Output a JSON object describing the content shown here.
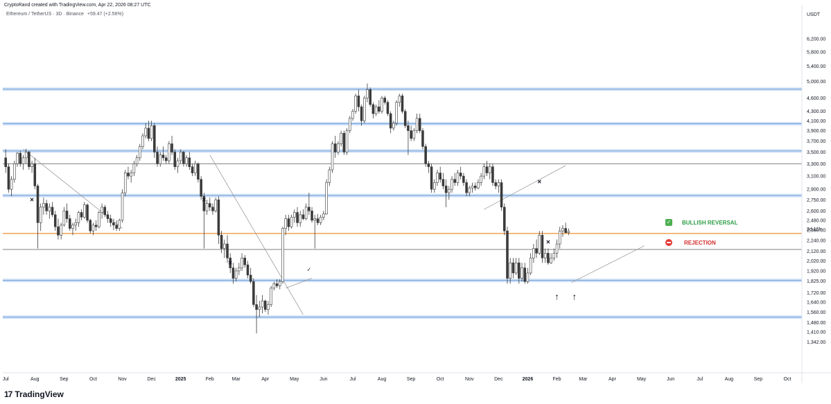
{
  "header": {
    "attribution": "CryptoRand created with TradingView.com, Apr 22, 2026 08:27 UTC",
    "symbol_line": "Ethereum / TetherUS · 3D · Binance",
    "change": "+59.47 (+2.56%)"
  },
  "branding": {
    "logo_glyph": "17",
    "name": "TradingView"
  },
  "annotations": {
    "bullish": {
      "label": "BULLISH REVERSAL",
      "icon_glyph": "✓",
      "color": "#2e9e46"
    },
    "rejection": {
      "label": "REJECTION",
      "color": "#d32f2f"
    },
    "countdown": "2d 16h"
  },
  "colors": {
    "up_body": "#ffffff",
    "down_body": "#3a3a3a",
    "candle_outline": "#3a3a3a",
    "support_band": "#aac8ef",
    "support_line": "#6f9fd8",
    "orange_line": "#f0a050",
    "grey_line": "#555555",
    "trend_line": "#9a9a9a"
  },
  "chart_data": {
    "type": "candlestick",
    "title": "",
    "quote_currency": "USDT",
    "scale": "log",
    "ylim": [
      1270,
      6700
    ],
    "price_ticks": [
      "6,200.00",
      "5,800.00",
      "5,400.00",
      "5,000.00",
      "4,600.00",
      "4,300.00",
      "4,100.00",
      "3,900.00",
      "3,700.00",
      "3,500.00",
      "3,300.00",
      "3,100.00",
      "2,900.00",
      "2,750.00",
      "2,600.00",
      "2,480.00",
      "2,360.00",
      "2,240.00",
      "2,120.00",
      "2,020.00",
      "1,920.00",
      "1,825.00",
      "1,720.00",
      "1,640.00",
      "1,560.00",
      "1,480.00",
      "1,410.00",
      "1,342.00"
    ],
    "x_ticks": [
      {
        "label": "Jul",
        "index": 0,
        "bold": false
      },
      {
        "label": "Aug",
        "index": 10,
        "bold": false
      },
      {
        "label": "Sep",
        "index": 20,
        "bold": false
      },
      {
        "label": "Oct",
        "index": 30,
        "bold": false
      },
      {
        "label": "Nov",
        "index": 40,
        "bold": false
      },
      {
        "label": "Dec",
        "index": 50,
        "bold": false
      },
      {
        "label": "2025",
        "index": 60,
        "bold": true
      },
      {
        "label": "Feb",
        "index": 70,
        "bold": false
      },
      {
        "label": "Mar",
        "index": 79,
        "bold": false
      },
      {
        "label": "Apr",
        "index": 89,
        "bold": false
      },
      {
        "label": "May",
        "index": 99,
        "bold": false
      },
      {
        "label": "Jun",
        "index": 109,
        "bold": false
      },
      {
        "label": "Jul",
        "index": 119,
        "bold": false
      },
      {
        "label": "Aug",
        "index": 129,
        "bold": false
      },
      {
        "label": "Sep",
        "index": 139,
        "bold": false
      },
      {
        "label": "Oct",
        "index": 149,
        "bold": false
      },
      {
        "label": "Nov",
        "index": 159,
        "bold": false
      },
      {
        "label": "Dec",
        "index": 169,
        "bold": false
      },
      {
        "label": "2026",
        "index": 179,
        "bold": true
      },
      {
        "label": "Feb",
        "index": 189,
        "bold": false
      },
      {
        "label": "Mar",
        "index": 198,
        "bold": false
      },
      {
        "label": "Apr",
        "index": 208,
        "bold": false
      },
      {
        "label": "May",
        "index": 218,
        "bold": false
      },
      {
        "label": "Jun",
        "index": 228,
        "bold": false
      },
      {
        "label": "Jul",
        "index": 238,
        "bold": false
      },
      {
        "label": "Aug",
        "index": 248,
        "bold": false
      },
      {
        "label": "Sep",
        "index": 258,
        "bold": false
      },
      {
        "label": "Oct",
        "index": 268,
        "bold": false
      }
    ],
    "x_domain": [
      -1,
      273
    ],
    "horizontal_levels": [
      {
        "price": 4810,
        "kind": "support"
      },
      {
        "price": 4040,
        "kind": "support"
      },
      {
        "price": 3520,
        "kind": "support"
      },
      {
        "price": 2810,
        "kind": "support"
      },
      {
        "price": 1830,
        "kind": "support"
      },
      {
        "price": 1520,
        "kind": "support"
      },
      {
        "price": 3300,
        "kind": "grey"
      },
      {
        "price": 2140,
        "kind": "grey"
      },
      {
        "price": 2320,
        "kind": "orange"
      }
    ],
    "trend_lines": [
      {
        "from": [
          6,
          3550
        ],
        "to": [
          40,
          2380
        ]
      },
      {
        "from": [
          70,
          3450
        ],
        "to": [
          102,
          1540
        ]
      },
      {
        "from": [
          96,
          1760
        ],
        "to": [
          105,
          1850
        ]
      },
      {
        "from": [
          164,
          2620
        ],
        "to": [
          192,
          3270
        ]
      },
      {
        "from": [
          194,
          1810
        ],
        "to": [
          219,
          2180
        ]
      }
    ],
    "markers": [
      {
        "type": "x",
        "index": 9,
        "price": 2750
      },
      {
        "type": "x",
        "index": 68,
        "price": 2750
      },
      {
        "type": "x",
        "index": 77,
        "price": 2000
      },
      {
        "type": "x",
        "index": 183,
        "price": 3010
      },
      {
        "type": "x",
        "index": 186,
        "price": 2220
      },
      {
        "type": "check",
        "index": 104,
        "price": 1935
      },
      {
        "type": "arrow-up",
        "index": 189,
        "price": 1690
      },
      {
        "type": "arrow-up",
        "index": 195,
        "price": 1690
      }
    ],
    "candles": [
      [
        3400,
        3550,
        3150,
        3250
      ],
      [
        3250,
        3300,
        2850,
        2900
      ],
      [
        2900,
        3100,
        2800,
        3050
      ],
      [
        3050,
        3350,
        3000,
        3300
      ],
      [
        3300,
        3500,
        3250,
        3480
      ],
      [
        3480,
        3520,
        3250,
        3300
      ],
      [
        3300,
        3450,
        3200,
        3400
      ],
      [
        3400,
        3560,
        3300,
        3500
      ],
      [
        3500,
        3520,
        3200,
        3250
      ],
      [
        3250,
        3350,
        3150,
        3300
      ],
      [
        3300,
        3400,
        2900,
        2950
      ],
      [
        2950,
        2980,
        2150,
        2450
      ],
      [
        2450,
        2700,
        2350,
        2650
      ],
      [
        2650,
        2780,
        2550,
        2700
      ],
      [
        2700,
        2750,
        2550,
        2600
      ],
      [
        2600,
        2700,
        2500,
        2650
      ],
      [
        2650,
        2720,
        2520,
        2550
      ],
      [
        2550,
        2600,
        2350,
        2400
      ],
      [
        2400,
        2500,
        2250,
        2300
      ],
      [
        2300,
        2450,
        2250,
        2420
      ],
      [
        2420,
        2650,
        2400,
        2600
      ],
      [
        2600,
        2700,
        2450,
        2500
      ],
      [
        2500,
        2550,
        2350,
        2380
      ],
      [
        2380,
        2450,
        2300,
        2420
      ],
      [
        2420,
        2500,
        2350,
        2450
      ],
      [
        2450,
        2600,
        2400,
        2580
      ],
      [
        2580,
        2620,
        2480,
        2520
      ],
      [
        2520,
        2720,
        2500,
        2680
      ],
      [
        2680,
        2700,
        2450,
        2480
      ],
      [
        2480,
        2500,
        2320,
        2350
      ],
      [
        2350,
        2450,
        2300,
        2420
      ],
      [
        2420,
        2480,
        2350,
        2400
      ],
      [
        2400,
        2600,
        2380,
        2580
      ],
      [
        2580,
        2700,
        2500,
        2650
      ],
      [
        2650,
        2680,
        2520,
        2550
      ],
      [
        2550,
        2600,
        2450,
        2500
      ],
      [
        2500,
        2550,
        2400,
        2450
      ],
      [
        2450,
        2500,
        2360,
        2420
      ],
      [
        2420,
        2480,
        2350,
        2380
      ],
      [
        2380,
        2500,
        2350,
        2480
      ],
      [
        2480,
        2900,
        2450,
        2850
      ],
      [
        2850,
        3200,
        2800,
        3150
      ],
      [
        3150,
        3250,
        3050,
        3100
      ],
      [
        3100,
        3200,
        3000,
        3150
      ],
      [
        3150,
        3350,
        3100,
        3300
      ],
      [
        3300,
        3450,
        3250,
        3400
      ],
      [
        3400,
        3650,
        3350,
        3600
      ],
      [
        3600,
        3850,
        3550,
        3800
      ],
      [
        3800,
        4050,
        3750,
        3950
      ],
      [
        3950,
        4100,
        3700,
        3750
      ],
      [
        3750,
        4100,
        3700,
        4000
      ],
      [
        4000,
        4050,
        3400,
        3500
      ],
      [
        3500,
        3600,
        3250,
        3300
      ],
      [
        3300,
        3500,
        3250,
        3450
      ],
      [
        3450,
        3600,
        3350,
        3400
      ],
      [
        3400,
        3450,
        3300,
        3350
      ],
      [
        3350,
        3700,
        3300,
        3650
      ],
      [
        3650,
        3800,
        3450,
        3500
      ],
      [
        3500,
        3550,
        3200,
        3250
      ],
      [
        3250,
        3400,
        3150,
        3350
      ],
      [
        3350,
        3550,
        3300,
        3500
      ],
      [
        3500,
        3520,
        3250,
        3300
      ],
      [
        3300,
        3450,
        3250,
        3400
      ],
      [
        3400,
        3500,
        3200,
        3250
      ],
      [
        3250,
        3300,
        3100,
        3150
      ],
      [
        3150,
        3350,
        3100,
        3300
      ],
      [
        3300,
        3320,
        3000,
        3050
      ],
      [
        3050,
        3100,
        2750,
        2800
      ],
      [
        2800,
        2850,
        2150,
        2600
      ],
      [
        2600,
        2750,
        2550,
        2700
      ],
      [
        2700,
        2780,
        2600,
        2650
      ],
      [
        2650,
        2700,
        2550,
        2600
      ],
      [
        2600,
        2780,
        2580,
        2750
      ],
      [
        2750,
        2800,
        2200,
        2300
      ],
      [
        2300,
        2350,
        2100,
        2150
      ],
      [
        2150,
        2250,
        2050,
        2200
      ],
      [
        2200,
        2300,
        2000,
        2050
      ],
      [
        2050,
        2100,
        1900,
        1950
      ],
      [
        1950,
        2000,
        1800,
        1850
      ],
      [
        1850,
        1950,
        1820,
        1920
      ],
      [
        1920,
        2000,
        1880,
        1950
      ],
      [
        1950,
        2100,
        1920,
        2050
      ],
      [
        2050,
        2080,
        1950,
        1980
      ],
      [
        1980,
        2020,
        1850,
        1880
      ],
      [
        1880,
        1950,
        1800,
        1820
      ],
      [
        1820,
        1850,
        1600,
        1620
      ],
      [
        1620,
        1700,
        1400,
        1580
      ],
      [
        1580,
        1650,
        1520,
        1600
      ],
      [
        1600,
        1700,
        1550,
        1650
      ],
      [
        1650,
        1660,
        1560,
        1580
      ],
      [
        1580,
        1650,
        1540,
        1620
      ],
      [
        1620,
        1780,
        1600,
        1760
      ],
      [
        1760,
        1820,
        1740,
        1800
      ],
      [
        1800,
        1840,
        1760,
        1780
      ],
      [
        1780,
        1840,
        1750,
        1820
      ],
      [
        1820,
        2400,
        1800,
        2380
      ],
      [
        2380,
        2550,
        2300,
        2500
      ],
      [
        2500,
        2550,
        2350,
        2400
      ],
      [
        2400,
        2550,
        2380,
        2520
      ],
      [
        2520,
        2620,
        2450,
        2580
      ],
      [
        2580,
        2650,
        2400,
        2450
      ],
      [
        2450,
        2600,
        2400,
        2550
      ],
      [
        2550,
        2620,
        2480,
        2500
      ],
      [
        2500,
        2700,
        2480,
        2650
      ],
      [
        2650,
        2850,
        2550,
        2600
      ],
      [
        2600,
        2650,
        2450,
        2480
      ],
      [
        2480,
        2550,
        2150,
        2500
      ],
      [
        2500,
        2560,
        2420,
        2450
      ],
      [
        2450,
        2550,
        2420,
        2520
      ],
      [
        2520,
        2600,
        2480,
        2560
      ],
      [
        2560,
        3050,
        2550,
        3000
      ],
      [
        3000,
        3250,
        2950,
        3200
      ],
      [
        3200,
        3700,
        3150,
        3650
      ],
      [
        3650,
        3800,
        3400,
        3500
      ],
      [
        3500,
        3700,
        3450,
        3650
      ],
      [
        3650,
        3900,
        3600,
        3850
      ],
      [
        3850,
        3900,
        3450,
        3500
      ],
      [
        3500,
        3950,
        3450,
        3900
      ],
      [
        3900,
        4200,
        3850,
        4150
      ],
      [
        4150,
        4350,
        4100,
        4300
      ],
      [
        4300,
        4700,
        4250,
        4650
      ],
      [
        4650,
        4800,
        4300,
        4400
      ],
      [
        4400,
        4450,
        4000,
        4100
      ],
      [
        4100,
        4650,
        4050,
        4600
      ],
      [
        4600,
        4950,
        4500,
        4800
      ],
      [
        4800,
        4850,
        4400,
        4450
      ],
      [
        4450,
        4500,
        4150,
        4250
      ],
      [
        4250,
        4450,
        4200,
        4400
      ],
      [
        4400,
        4550,
        4250,
        4300
      ],
      [
        4300,
        4650,
        4250,
        4600
      ],
      [
        4600,
        4650,
        4450,
        4500
      ],
      [
        4500,
        4550,
        4200,
        4250
      ],
      [
        4250,
        4300,
        3850,
        3950
      ],
      [
        3950,
        4100,
        3900,
        4050
      ],
      [
        4050,
        4550,
        4000,
        4500
      ],
      [
        4500,
        4700,
        4400,
        4650
      ],
      [
        4650,
        4700,
        4250,
        4300
      ],
      [
        4300,
        4350,
        3950,
        4000
      ],
      [
        4000,
        4100,
        3450,
        3900
      ],
      [
        3900,
        4000,
        3700,
        3750
      ],
      [
        3750,
        3950,
        3700,
        3900
      ],
      [
        3900,
        4250,
        3850,
        4150
      ],
      [
        4150,
        4250,
        3850,
        3900
      ],
      [
        3900,
        3950,
        3550,
        3600
      ],
      [
        3600,
        3650,
        3250,
        3300
      ],
      [
        3300,
        3350,
        3150,
        3250
      ],
      [
        3250,
        3300,
        2850,
        2900
      ],
      [
        2900,
        3050,
        2850,
        3000
      ],
      [
        3000,
        3200,
        2950,
        3150
      ],
      [
        3150,
        3250,
        3000,
        3050
      ],
      [
        3050,
        3150,
        2900,
        2950
      ],
      [
        2950,
        3050,
        2650,
        2850
      ],
      [
        2850,
        2950,
        2750,
        2900
      ],
      [
        2900,
        3100,
        2850,
        3050
      ],
      [
        3050,
        3150,
        2950,
        3000
      ],
      [
        3000,
        3200,
        2950,
        3150
      ],
      [
        3150,
        3250,
        3050,
        3100
      ],
      [
        3100,
        3150,
        2950,
        3000
      ],
      [
        3000,
        3050,
        2800,
        2850
      ],
      [
        2850,
        2950,
        2800,
        2920
      ],
      [
        2920,
        3000,
        2850,
        2950
      ],
      [
        2950,
        3000,
        2880,
        2920
      ],
      [
        2920,
        3050,
        2900,
        3000
      ],
      [
        3000,
        3150,
        2950,
        3100
      ],
      [
        3100,
        3300,
        3050,
        3250
      ],
      [
        3250,
        3350,
        3100,
        3150
      ],
      [
        3150,
        3300,
        3050,
        3250
      ],
      [
        3250,
        3300,
        2950,
        3000
      ],
      [
        3000,
        3050,
        2900,
        2950
      ],
      [
        2950,
        3050,
        2850,
        3000
      ],
      [
        3000,
        3050,
        2600,
        2650
      ],
      [
        2650,
        2700,
        2300,
        2350
      ],
      [
        2350,
        2400,
        1800,
        1850
      ],
      [
        1850,
        2050,
        1800,
        2000
      ],
      [
        2000,
        2050,
        1850,
        1900
      ],
      [
        1900,
        2050,
        1880,
        2000
      ],
      [
        2000,
        2050,
        1800,
        1850
      ],
      [
        1850,
        2000,
        1820,
        1950
      ],
      [
        1950,
        2000,
        1800,
        1820
      ],
      [
        1820,
        1950,
        1800,
        1900
      ],
      [
        1900,
        2100,
        1880,
        2050
      ],
      [
        2050,
        2200,
        2000,
        2150
      ],
      [
        2150,
        2250,
        2050,
        2100
      ],
      [
        2100,
        2350,
        2080,
        2300
      ],
      [
        2300,
        2350,
        2000,
        2050
      ],
      [
        2050,
        2150,
        2000,
        2100
      ],
      [
        2100,
        2150,
        1980,
        2000
      ],
      [
        2000,
        2100,
        1990,
        2050
      ],
      [
        2050,
        2150,
        2020,
        2100
      ],
      [
        2100,
        2250,
        2050,
        2200
      ],
      [
        2200,
        2400,
        2150,
        2350
      ],
      [
        2350,
        2420,
        2280,
        2380
      ],
      [
        2380,
        2450,
        2320,
        2330
      ],
      [
        2330,
        2380,
        2300,
        2345
      ]
    ]
  }
}
